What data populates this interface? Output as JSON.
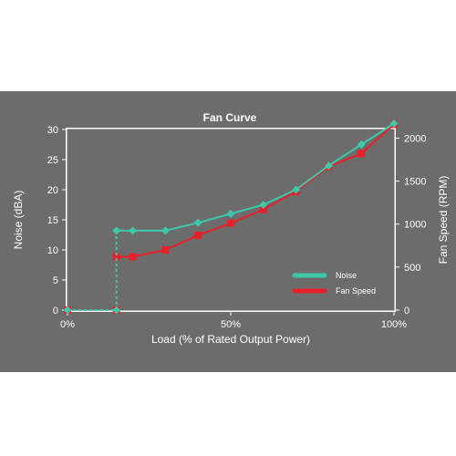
{
  "chart_data": {
    "type": "line",
    "title": "Fan Curve",
    "xlabel": "Load (% of Rated Output Power)",
    "ylabel": "Noise (dBA)",
    "y2label": "Fan Speed (RPM)",
    "xlim": [
      0,
      100
    ],
    "ylim": [
      0,
      30
    ],
    "y2lim": [
      0,
      2100
    ],
    "x_ticks": [
      0,
      50,
      100
    ],
    "x_tick_labels": [
      "0%",
      "50%",
      "100%"
    ],
    "y_ticks": [
      0,
      5,
      10,
      15,
      20,
      25,
      30
    ],
    "y_tick_labels": [
      "0",
      "5",
      "10",
      "15",
      "20",
      "25",
      "30"
    ],
    "y2_ticks": [
      0,
      500,
      1000,
      1500,
      2000
    ],
    "y2_tick_labels": [
      "0",
      "500",
      "1000",
      "1500",
      "2000"
    ],
    "grid": false,
    "legend_position": "bottom-right",
    "series": [
      {
        "name": "Noise",
        "axis": "left",
        "color": "#3ec8a8",
        "marker": "diamond",
        "x": [
          0,
          15,
          15,
          20,
          30,
          40,
          50,
          60,
          70,
          80,
          90,
          100
        ],
        "values": [
          0,
          0,
          13.2,
          13.2,
          13.2,
          14.5,
          16,
          17.5,
          20,
          24,
          27.5,
          31
        ]
      },
      {
        "name": "Fan Speed",
        "axis": "right",
        "color": "#e8202a",
        "marker": "square",
        "x": [
          0,
          15,
          15,
          20,
          30,
          40,
          50,
          60,
          70,
          80,
          90,
          100
        ],
        "values": [
          0,
          0,
          620,
          620,
          700,
          870,
          1010,
          1170,
          1380,
          1670,
          1820,
          2160
        ]
      }
    ],
    "vertical_jump_at": 15
  }
}
